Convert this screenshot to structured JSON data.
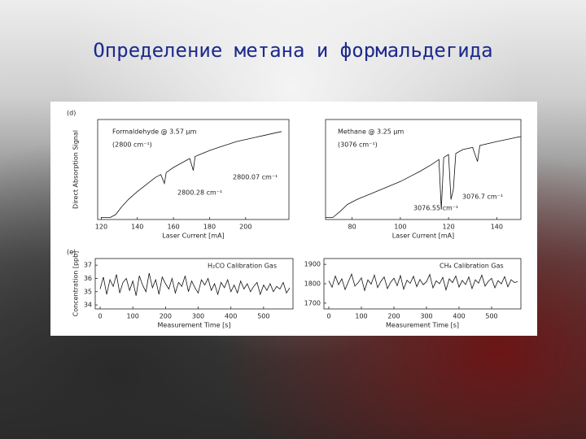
{
  "title": "Определение метана и формальдегида",
  "chart_data": [
    {
      "type": "line",
      "panel": "(d)",
      "xlabel": "Laser Current [mA]",
      "ylabel": "Direct Absorption Signal",
      "annotations": [
        "Formaldehyde @ 3.57 μm",
        "(2800 cm⁻¹)",
        "2800.28 cm⁻¹",
        "2800.07 cm⁻¹"
      ],
      "x": [
        120,
        125,
        128,
        131,
        135,
        140,
        145,
        150,
        153,
        155,
        156,
        160,
        165,
        169,
        171,
        172,
        176,
        180,
        185,
        190,
        195,
        200,
        205,
        210,
        215,
        220
      ],
      "values": [
        0.02,
        0.02,
        0.05,
        0.12,
        0.2,
        0.28,
        0.35,
        0.42,
        0.45,
        0.36,
        0.47,
        0.52,
        0.57,
        0.61,
        0.49,
        0.63,
        0.66,
        0.69,
        0.72,
        0.75,
        0.78,
        0.8,
        0.82,
        0.84,
        0.86,
        0.88
      ],
      "color": "#111111",
      "xlim": [
        118,
        224
      ],
      "xticks": [
        120,
        140,
        160,
        180,
        200
      ],
      "ylim": [
        0,
        1
      ]
    },
    {
      "type": "line",
      "xlabel": "Laser Current [mA]",
      "annotations": [
        "Methane @ 3.25 μm",
        "(3076 cm⁻¹)",
        "3076.55 cm⁻¹",
        "3076.7 cm⁻¹"
      ],
      "x": [
        69,
        72,
        75,
        78,
        82,
        90,
        100,
        108,
        113,
        116,
        117,
        118,
        120,
        121,
        122,
        123,
        126,
        130,
        132,
        133,
        140,
        148,
        150
      ],
      "values": [
        0.02,
        0.02,
        0.08,
        0.15,
        0.2,
        0.28,
        0.38,
        0.48,
        0.55,
        0.6,
        0.1,
        0.62,
        0.65,
        0.2,
        0.3,
        0.66,
        0.7,
        0.72,
        0.58,
        0.74,
        0.78,
        0.82,
        0.83
      ],
      "color": "#111111",
      "xlim": [
        69,
        150
      ],
      "xticks": [
        80,
        100,
        120,
        140
      ],
      "ylim": [
        0,
        1
      ]
    },
    {
      "type": "line",
      "panel": "(e)",
      "xlabel": "Measurement Time [s]",
      "ylabel": "Concentration [ppb]",
      "annotations": [
        "H₂CO Calibration Gas"
      ],
      "x": [
        0,
        10,
        20,
        30,
        40,
        50,
        60,
        70,
        80,
        90,
        100,
        110,
        120,
        130,
        140,
        150,
        160,
        170,
        180,
        190,
        200,
        210,
        220,
        230,
        240,
        250,
        260,
        270,
        280,
        290,
        300,
        310,
        320,
        330,
        340,
        350,
        360,
        370,
        380,
        390,
        400,
        410,
        420,
        430,
        440,
        450,
        460,
        470,
        480,
        490,
        500,
        510,
        520,
        530,
        540,
        550,
        560,
        570,
        580
      ],
      "values": [
        35.2,
        36.1,
        34.8,
        35.9,
        35.4,
        36.3,
        34.9,
        35.7,
        36.0,
        35.1,
        35.8,
        34.7,
        36.2,
        35.5,
        35.0,
        36.4,
        35.3,
        35.9,
        34.8,
        36.1,
        35.6,
        35.2,
        36.0,
        34.9,
        35.7,
        35.4,
        36.2,
        35.0,
        35.8,
        35.3,
        34.9,
        35.9,
        35.5,
        36.0,
        35.1,
        35.6,
        34.8,
        35.7,
        35.3,
        35.9,
        35.0,
        35.5,
        34.9,
        35.8,
        35.2,
        35.6,
        35.0,
        35.4,
        35.7,
        34.8,
        35.5,
        35.1,
        35.6,
        35.0,
        35.4,
        35.2,
        35.7,
        34.9,
        35.3
      ],
      "color": "#111111",
      "xlim": [
        -15,
        590
      ],
      "xticks": [
        0,
        100,
        200,
        300,
        400,
        500
      ],
      "ylim": [
        33.7,
        37.5
      ],
      "yticks": [
        34,
        35,
        36,
        37
      ]
    },
    {
      "type": "line",
      "xlabel": "Measurement Time [s]",
      "annotations": [
        "CH₄ Calibration Gas"
      ],
      "x": [
        0,
        10,
        20,
        30,
        40,
        50,
        60,
        70,
        80,
        90,
        100,
        110,
        120,
        130,
        140,
        150,
        160,
        170,
        180,
        190,
        200,
        210,
        220,
        230,
        240,
        250,
        260,
        270,
        280,
        290,
        300,
        310,
        320,
        330,
        340,
        350,
        360,
        370,
        380,
        390,
        400,
        410,
        420,
        430,
        440,
        450,
        460,
        470,
        480,
        490,
        500,
        510,
        520,
        530,
        540,
        550,
        560,
        570,
        580
      ],
      "values": [
        1815,
        1782,
        1840,
        1795,
        1825,
        1770,
        1810,
        1850,
        1788,
        1805,
        1830,
        1765,
        1820,
        1798,
        1845,
        1780,
        1812,
        1835,
        1775,
        1808,
        1828,
        1790,
        1842,
        1772,
        1818,
        1802,
        1838,
        1785,
        1822,
        1795,
        1810,
        1848,
        1778,
        1815,
        1800,
        1833,
        1768,
        1825,
        1806,
        1840,
        1783,
        1817,
        1796,
        1835,
        1775,
        1820,
        1803,
        1844,
        1788,
        1812,
        1828,
        1779,
        1816,
        1799,
        1837,
        1784,
        1821,
        1806,
        1811
      ],
      "color": "#111111",
      "xlim": [
        -15,
        590
      ],
      "xticks": [
        0,
        100,
        200,
        300,
        400,
        500
      ],
      "ylim": [
        1670,
        1930
      ],
      "yticks": [
        1700,
        1800,
        1900
      ]
    }
  ]
}
